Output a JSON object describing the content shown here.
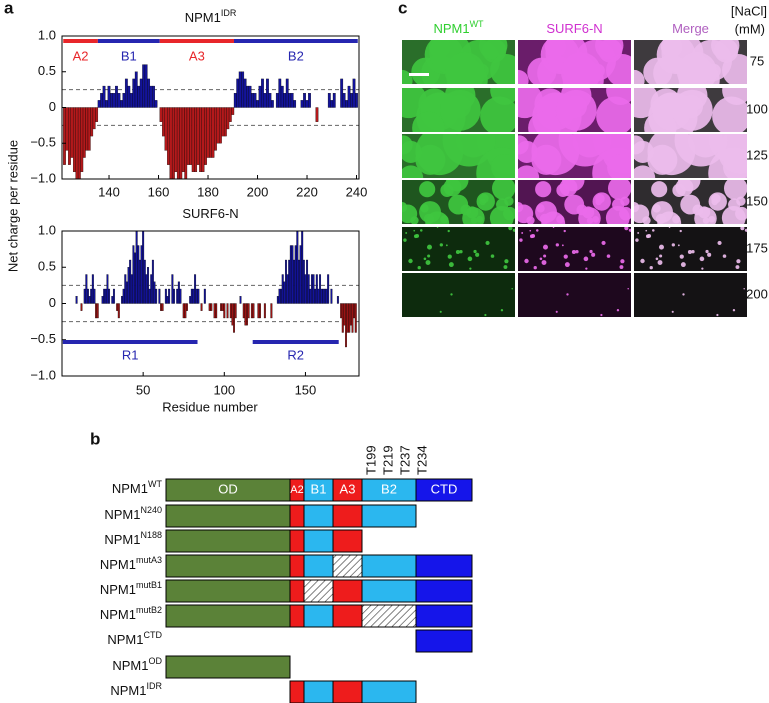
{
  "panel_labels": [
    "a",
    "b",
    "c"
  ],
  "chart_data": [
    {
      "type": "bar",
      "title": "NPM1",
      "title_sup": "IDR",
      "y_label": "Net charge per residue",
      "positive_color": "#13139a",
      "negative_color": "#b3191b",
      "xlim": [
        121,
        241
      ],
      "xticks": [
        140,
        160,
        180,
        200,
        220,
        240
      ],
      "ylim": [
        -1,
        1
      ],
      "yticks": [
        {
          "value": -1,
          "label": "−1.0"
        },
        {
          "value": -0.5,
          "label": "−0.5"
        },
        0,
        {
          "value": 0.5,
          "label": "0.5"
        },
        {
          "value": 1,
          "label": "1.0"
        }
      ],
      "reference_lines": [
        0.25,
        -0.25
      ],
      "regions": [
        {
          "label": "A2",
          "start": 122,
          "end": 135,
          "color": "#e8262a"
        },
        {
          "label": "B1",
          "start": 136,
          "end": 160,
          "color": "#2626b0"
        },
        {
          "label": "A3",
          "start": 161,
          "end": 190,
          "color": "#e8262a"
        },
        {
          "label": "B2",
          "start": 191,
          "end": 240,
          "color": "#2626b0"
        }
      ],
      "x": [
        122,
        123,
        124,
        125,
        126,
        127,
        128,
        129,
        130,
        131,
        132,
        133,
        134,
        135,
        136,
        137,
        138,
        139,
        140,
        141,
        142,
        143,
        144,
        145,
        146,
        147,
        148,
        149,
        150,
        151,
        152,
        153,
        154,
        155,
        156,
        157,
        158,
        159,
        160,
        161,
        162,
        163,
        164,
        165,
        166,
        167,
        168,
        169,
        170,
        171,
        172,
        173,
        174,
        175,
        176,
        177,
        178,
        179,
        180,
        181,
        182,
        183,
        184,
        185,
        186,
        187,
        188,
        189,
        190,
        191,
        192,
        193,
        194,
        195,
        196,
        197,
        198,
        199,
        200,
        201,
        202,
        203,
        204,
        205,
        206,
        207,
        208,
        209,
        210,
        211,
        212,
        213,
        214,
        215,
        216,
        217,
        218,
        219,
        220,
        221,
        222,
        223,
        224,
        225,
        226,
        227,
        228,
        229,
        230,
        231,
        232,
        233,
        234,
        235,
        236,
        237,
        238,
        239,
        240
      ],
      "values": [
        -0.8,
        -0.6,
        -0.8,
        -0.7,
        -0.9,
        -1.0,
        -1.0,
        -0.9,
        -0.7,
        -0.6,
        -0.6,
        -0.4,
        -0.3,
        -0.2,
        0.1,
        0.2,
        0.3,
        0.1,
        0.3,
        0.2,
        0.2,
        0.3,
        0.2,
        0.1,
        0.2,
        0.4,
        0.3,
        0.2,
        0.4,
        0.5,
        0.3,
        0.4,
        0.6,
        0.6,
        0.4,
        0.3,
        0.3,
        0.1,
        0,
        -0.2,
        -0.4,
        -0.6,
        -0.8,
        -1.0,
        -1.0,
        -0.9,
        -1.0,
        -1.0,
        -0.9,
        -1.0,
        -0.8,
        -0.8,
        -0.9,
        -0.9,
        -0.8,
        -0.9,
        -0.9,
        -0.8,
        -0.7,
        -0.7,
        -0.7,
        -0.6,
        -0.5,
        -0.5,
        -0.4,
        -0.4,
        -0.3,
        -0.2,
        -0.1,
        0.2,
        0.4,
        0.5,
        0.5,
        0.4,
        0.3,
        0.3,
        0.2,
        0.2,
        0.1,
        0.3,
        0.4,
        0.2,
        0.4,
        0.2,
        0.1,
        0,
        0.2,
        0.4,
        0.3,
        0.2,
        0.4,
        0.2,
        0.2,
        0.1,
        0,
        0,
        0.1,
        0.2,
        0.1,
        0.2,
        0,
        0,
        -0.2,
        0,
        0,
        0,
        0,
        0.2,
        0.1,
        0.2,
        0,
        0,
        0.4,
        0.2,
        0.1,
        0.3,
        0.2,
        0.4,
        0.2
      ]
    },
    {
      "type": "bar",
      "title": "SURF6-N",
      "x_label": "Residue number",
      "positive_color": "#13139a",
      "negative_color": "#9a1414",
      "xlim": [
        0,
        183
      ],
      "xticks": [
        50,
        100,
        150
      ],
      "ylim": [
        -1,
        1
      ],
      "yticks": [
        {
          "value": -1,
          "label": "−1.0"
        },
        {
          "value": -0.5,
          "label": "−0.5"
        },
        0,
        {
          "value": 0.5,
          "label": "0.5"
        },
        {
          "value": 1,
          "label": "1.0"
        }
      ],
      "reference_lines": [
        0.25,
        -0.25
      ],
      "regions": [
        {
          "label": "R1",
          "start": 1,
          "end": 83,
          "color": "#2626b0"
        },
        {
          "label": "R2",
          "start": 118,
          "end": 170,
          "color": "#2626b0"
        }
      ],
      "x": [
        1,
        2,
        3,
        4,
        5,
        6,
        7,
        8,
        9,
        10,
        11,
        12,
        13,
        14,
        15,
        16,
        17,
        18,
        19,
        20,
        21,
        22,
        23,
        24,
        25,
        26,
        27,
        28,
        29,
        30,
        31,
        32,
        33,
        34,
        35,
        36,
        37,
        38,
        39,
        40,
        41,
        42,
        43,
        44,
        45,
        46,
        47,
        48,
        49,
        50,
        51,
        52,
        53,
        54,
        55,
        56,
        57,
        58,
        59,
        60,
        61,
        62,
        63,
        64,
        65,
        66,
        67,
        68,
        69,
        70,
        71,
        72,
        73,
        74,
        75,
        76,
        77,
        78,
        79,
        80,
        81,
        82,
        83,
        84,
        85,
        86,
        87,
        88,
        89,
        90,
        91,
        92,
        93,
        94,
        95,
        96,
        97,
        98,
        99,
        100,
        101,
        102,
        103,
        104,
        105,
        106,
        107,
        108,
        109,
        110,
        111,
        112,
        113,
        114,
        115,
        116,
        117,
        118,
        119,
        120,
        121,
        122,
        123,
        124,
        125,
        126,
        127,
        128,
        129,
        130,
        131,
        132,
        133,
        134,
        135,
        136,
        137,
        138,
        139,
        140,
        141,
        142,
        143,
        144,
        145,
        146,
        147,
        148,
        149,
        150,
        151,
        152,
        153,
        154,
        155,
        156,
        157,
        158,
        159,
        160,
        161,
        162,
        163,
        164,
        165,
        166,
        167,
        168,
        169,
        170,
        171,
        172,
        173,
        174,
        175,
        176,
        177,
        178,
        179,
        180,
        181
      ],
      "values": [
        0,
        0,
        0,
        0,
        0,
        0,
        0,
        0,
        0.1,
        0,
        0,
        -0.1,
        0,
        0.2,
        0.4,
        0.2,
        0.1,
        0.2,
        0.4,
        0.2,
        -0.2,
        -0.2,
        0,
        0,
        0.1,
        0.2,
        0.2,
        0.4,
        0.2,
        0,
        0.1,
        0.2,
        0,
        -0.1,
        -0.2,
        0,
        0.1,
        0.2,
        0.4,
        0.3,
        0.5,
        0.6,
        0.4,
        0.8,
        0.7,
        1.0,
        0.8,
        0.6,
        0.8,
        1.0,
        0.6,
        0.4,
        0.5,
        0.2,
        0.4,
        0.6,
        0.3,
        0.2,
        0,
        0.2,
        -0.1,
        -0.1,
        0,
        0.2,
        0.1,
        0.2,
        0,
        0.4,
        0.2,
        0,
        0.2,
        0.3,
        0.2,
        0,
        -0.2,
        -0.2,
        -0.1,
        0,
        0.1,
        0.2,
        0.2,
        0.4,
        0.2,
        0.2,
        0,
        -0.1,
        0,
        0.2,
        0,
        0,
        -0.1,
        -0.1,
        0,
        -0.2,
        -0.2,
        0,
        0,
        -0.1,
        -0.1,
        -0.2,
        0,
        -0.2,
        0,
        -0.2,
        -0.3,
        -0.4,
        -0.2,
        0,
        0,
        0.1,
        0,
        -0.2,
        -0.3,
        -0.3,
        -0.2,
        0,
        -0.2,
        -0.2,
        0,
        0,
        -0.2,
        -0.2,
        0,
        0,
        -0.2,
        0,
        0,
        0,
        -0.2,
        0,
        0,
        0,
        0.1,
        0.2,
        0.2,
        0.4,
        0.3,
        0.6,
        0.4,
        0.6,
        0.8,
        0.8,
        0.6,
        0.8,
        1.0,
        0.6,
        0.8,
        1.0,
        0.6,
        0.4,
        0.6,
        0.4,
        0.2,
        0.4,
        0.4,
        0.2,
        0.4,
        0.2,
        0.4,
        0.2,
        0.2,
        0.2,
        0.2,
        0.4,
        0,
        0.2,
        0,
        0,
        0,
        0.1,
        0,
        -0.2,
        -0.4,
        -0.3,
        -0.6,
        -0.4,
        -0.4,
        -0.3,
        -0.4,
        -0.2,
        -0.4
      ]
    }
  ],
  "constructs": {
    "domains": [
      {
        "label": "OD",
        "color": "#5b8238"
      },
      {
        "label": "A2",
        "color": "#ee1c1c"
      },
      {
        "label": "B1",
        "color": "#2bb7ef"
      },
      {
        "label": "A3",
        "color": "#ee1c1c"
      },
      {
        "label": "B2",
        "color": "#2bb7ef"
      },
      {
        "label": "CTD",
        "color": "#1515ea"
      }
    ],
    "sites": [
      "T199",
      "T219",
      "T237",
      "T234"
    ],
    "rows": [
      {
        "name": "NPM1",
        "sup": "WT",
        "parts": [
          "OD",
          "A2",
          "B1",
          "A3",
          "B2",
          "CTD"
        ],
        "hatched": []
      },
      {
        "name": "NPM1",
        "sup": "N240",
        "parts": [
          "OD",
          "A2",
          "B1",
          "A3",
          "B2"
        ],
        "hatched": []
      },
      {
        "name": "NPM1",
        "sup": "N188",
        "parts": [
          "OD",
          "A2",
          "B1",
          "A3"
        ],
        "hatched": []
      },
      {
        "name": "NPM1",
        "sup": "mutA3",
        "parts": [
          "OD",
          "A2",
          "B1",
          "A3",
          "B2",
          "CTD"
        ],
        "hatched": [
          "A3"
        ]
      },
      {
        "name": "NPM1",
        "sup": "mutB1",
        "parts": [
          "OD",
          "A2",
          "B1",
          "A3",
          "B2",
          "CTD"
        ],
        "hatched": [
          "B1"
        ]
      },
      {
        "name": "NPM1",
        "sup": "mutB2",
        "parts": [
          "OD",
          "A2",
          "B1",
          "A3",
          "B2",
          "CTD"
        ],
        "hatched": [
          "B2"
        ]
      },
      {
        "name": "NPM1",
        "sup": "CTD",
        "parts": [
          "CTD"
        ],
        "hatched": []
      },
      {
        "name": "NPM1",
        "sup": "OD",
        "parts": [
          "OD"
        ],
        "hatched": []
      },
      {
        "name": "NPM1",
        "sup": "IDR",
        "parts": [
          "A2",
          "B1",
          "A3",
          "B2"
        ],
        "hatched": []
      }
    ]
  },
  "micrographs": {
    "columns": [
      {
        "label": "NPM1",
        "sup": "WT",
        "color": "#2fcf2f"
      },
      {
        "label": "SURF6-N",
        "color": "#d030d0"
      },
      {
        "label": "Merge",
        "color": "#b060c0"
      }
    ],
    "condition_label": "[NaCl]",
    "condition_unit": "(mM)",
    "rows": [
      75,
      100,
      125,
      150,
      175,
      200
    ]
  }
}
